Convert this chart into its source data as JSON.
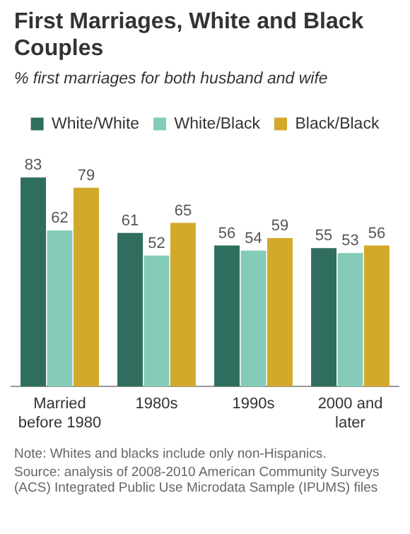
{
  "chart_data": {
    "type": "bar",
    "title": "First Marriages, White and Black Couples",
    "subtitle": "% first marriages for both husband and wife",
    "categories": [
      "Married before 1980",
      "1980s",
      "1990s",
      "2000 and later"
    ],
    "series": [
      {
        "name": "White/White",
        "color": "#2f6e5f",
        "values": [
          83,
          61,
          56,
          55
        ]
      },
      {
        "name": "White/Black",
        "color": "#84cbb9",
        "values": [
          62,
          52,
          54,
          53
        ]
      },
      {
        "name": "Black/Black",
        "color": "#d3a92b",
        "values": [
          79,
          65,
          59,
          56
        ]
      }
    ],
    "data_labels": true,
    "legend": "top",
    "grid": false,
    "annotations": [
      "Note: Whites and blacks include only non-Hispanics.",
      "Source: analysis of 2008-2010 American Community Surveys (ACS) Integrated Public Use Microdata Sample (IPUMS) files"
    ]
  }
}
